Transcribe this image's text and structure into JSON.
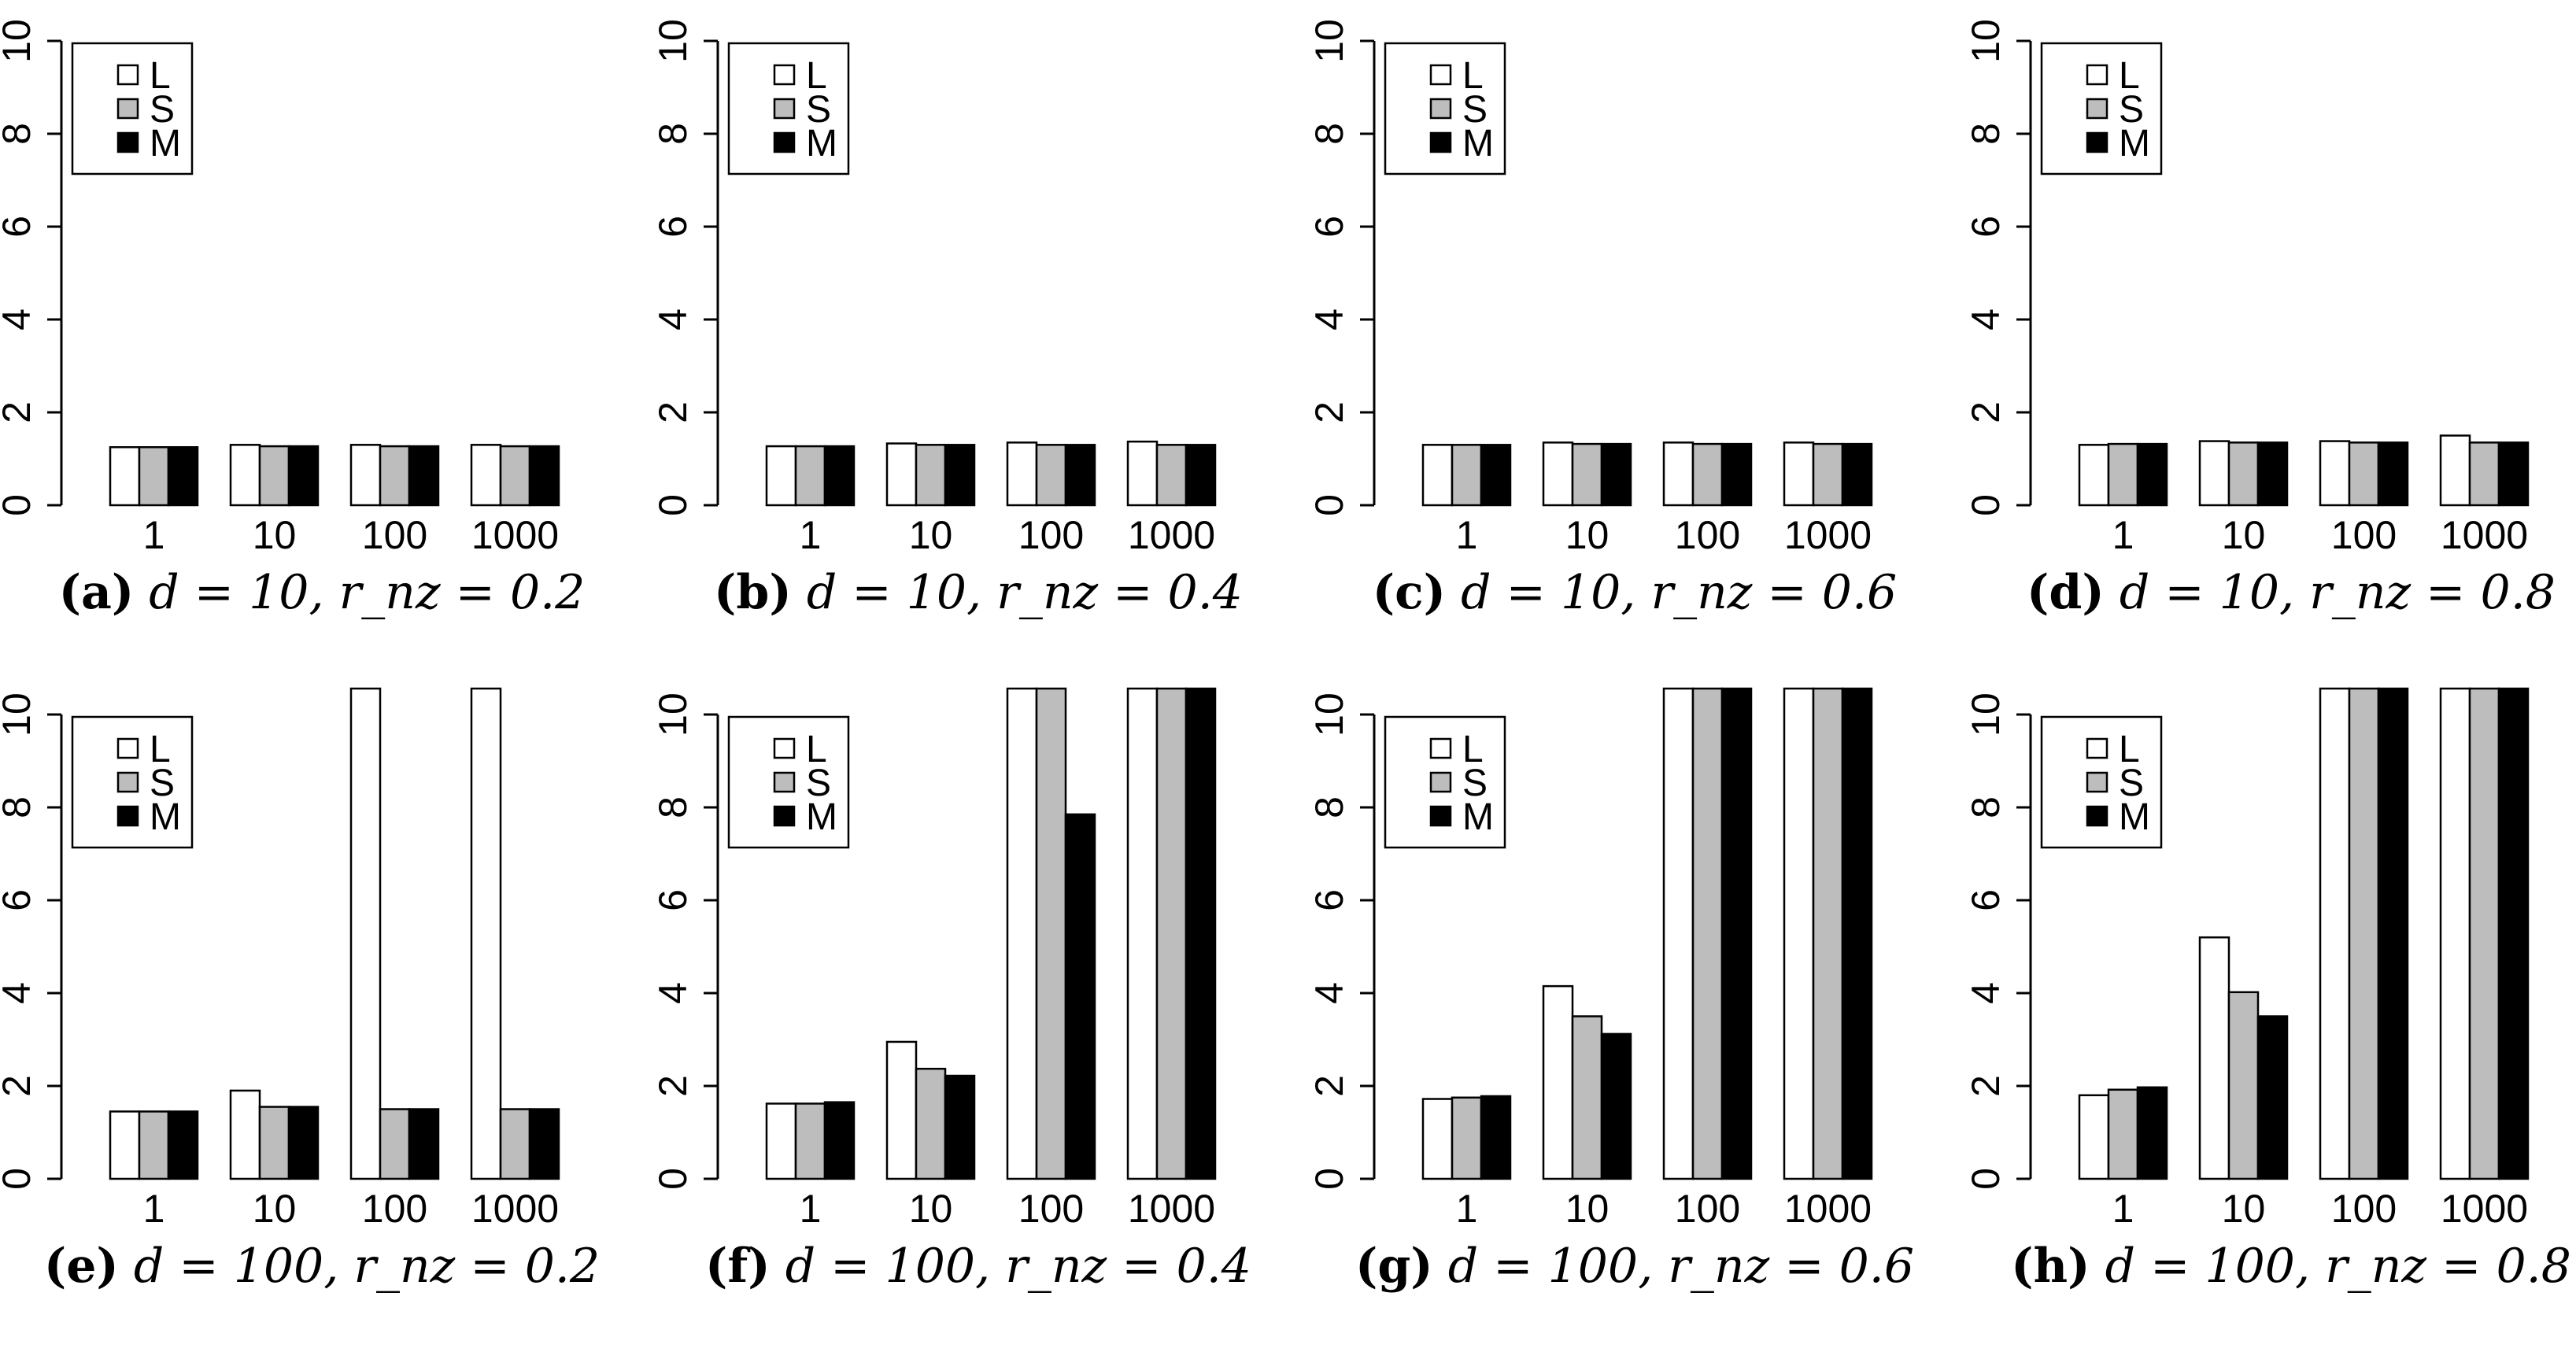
{
  "figure": {
    "legend_entries": [
      "L",
      "S",
      "M"
    ],
    "colors": {
      "L": "#ffffff",
      "S": "#bdbdbd",
      "M": "#000000",
      "stroke": "#000000"
    }
  },
  "chart_data": [
    {
      "type": "bar",
      "panel": "a",
      "caption": {
        "label": "(a)",
        "text": "d = 10, r_nz = 0.2"
      },
      "categories": [
        "1",
        "10",
        "100",
        "1000"
      ],
      "ylim": [
        0,
        10
      ],
      "yticks": [
        "0",
        "2",
        "4",
        "6",
        "8",
        "10"
      ],
      "legend": "top-left",
      "series": [
        {
          "name": "L",
          "values": [
            1.25,
            1.3,
            1.3,
            1.3
          ]
        },
        {
          "name": "S",
          "values": [
            1.25,
            1.27,
            1.27,
            1.27
          ]
        },
        {
          "name": "M",
          "values": [
            1.25,
            1.27,
            1.27,
            1.27
          ]
        }
      ]
    },
    {
      "type": "bar",
      "panel": "b",
      "caption": {
        "label": "(b)",
        "text": "d = 10, r_nz = 0.4"
      },
      "categories": [
        "1",
        "10",
        "100",
        "1000"
      ],
      "ylim": [
        0,
        10
      ],
      "yticks": [
        "0",
        "2",
        "4",
        "6",
        "8",
        "10"
      ],
      "legend": "top-left",
      "series": [
        {
          "name": "L",
          "values": [
            1.27,
            1.33,
            1.35,
            1.37
          ]
        },
        {
          "name": "S",
          "values": [
            1.27,
            1.3,
            1.3,
            1.3
          ]
        },
        {
          "name": "M",
          "values": [
            1.27,
            1.3,
            1.3,
            1.3
          ]
        }
      ]
    },
    {
      "type": "bar",
      "panel": "c",
      "caption": {
        "label": "(c)",
        "text": "d = 10, r_nz = 0.6"
      },
      "categories": [
        "1",
        "10",
        "100",
        "1000"
      ],
      "ylim": [
        0,
        10
      ],
      "yticks": [
        "0",
        "2",
        "4",
        "6",
        "8",
        "10"
      ],
      "legend": "top-left",
      "series": [
        {
          "name": "L",
          "values": [
            1.3,
            1.35,
            1.35,
            1.35
          ]
        },
        {
          "name": "S",
          "values": [
            1.3,
            1.32,
            1.32,
            1.32
          ]
        },
        {
          "name": "M",
          "values": [
            1.3,
            1.32,
            1.32,
            1.32
          ]
        }
      ]
    },
    {
      "type": "bar",
      "panel": "d",
      "caption": {
        "label": "(d)",
        "text": "d = 10, r_nz = 0.8"
      },
      "categories": [
        "1",
        "10",
        "100",
        "1000"
      ],
      "ylim": [
        0,
        10
      ],
      "yticks": [
        "0",
        "2",
        "4",
        "6",
        "8",
        "10"
      ],
      "legend": "top-left",
      "series": [
        {
          "name": "L",
          "values": [
            1.3,
            1.38,
            1.38,
            1.5
          ]
        },
        {
          "name": "S",
          "values": [
            1.32,
            1.35,
            1.35,
            1.35
          ]
        },
        {
          "name": "M",
          "values": [
            1.32,
            1.35,
            1.35,
            1.35
          ]
        }
      ]
    },
    {
      "type": "bar",
      "panel": "e",
      "caption": {
        "label": "(e)",
        "text": "d = 100, r_nz = 0.2"
      },
      "categories": [
        "1",
        "10",
        "100",
        "1000"
      ],
      "ylim": [
        0,
        10
      ],
      "yticks": [
        "0",
        "2",
        "4",
        "6",
        "8",
        "10"
      ],
      "legend": "top-left",
      "series": [
        {
          "name": "L",
          "values": [
            1.45,
            1.9,
            11,
            11
          ]
        },
        {
          "name": "S",
          "values": [
            1.45,
            1.55,
            1.5,
            1.5
          ]
        },
        {
          "name": "M",
          "values": [
            1.45,
            1.55,
            1.5,
            1.5
          ]
        }
      ]
    },
    {
      "type": "bar",
      "panel": "f",
      "caption": {
        "label": "(f)",
        "text": "d = 100, r_nz = 0.4"
      },
      "categories": [
        "1",
        "10",
        "100",
        "1000"
      ],
      "ylim": [
        0,
        10
      ],
      "yticks": [
        "0",
        "2",
        "4",
        "6",
        "8",
        "10"
      ],
      "legend": "top-left",
      "series": [
        {
          "name": "L",
          "values": [
            1.62,
            2.95,
            11,
            11
          ]
        },
        {
          "name": "S",
          "values": [
            1.62,
            2.37,
            11,
            11
          ]
        },
        {
          "name": "M",
          "values": [
            1.65,
            2.22,
            7.85,
            11
          ]
        }
      ]
    },
    {
      "type": "bar",
      "panel": "g",
      "caption": {
        "label": "(g)",
        "text": "d = 100, r_nz = 0.6"
      },
      "categories": [
        "1",
        "10",
        "100",
        "1000"
      ],
      "ylim": [
        0,
        10
      ],
      "yticks": [
        "0",
        "2",
        "4",
        "6",
        "8",
        "10"
      ],
      "legend": "top-left",
      "series": [
        {
          "name": "L",
          "values": [
            1.72,
            4.15,
            11,
            11
          ]
        },
        {
          "name": "S",
          "values": [
            1.75,
            3.5,
            11,
            11
          ]
        },
        {
          "name": "M",
          "values": [
            1.78,
            3.12,
            11,
            11
          ]
        }
      ]
    },
    {
      "type": "bar",
      "panel": "h",
      "caption": {
        "label": "(h)",
        "text": "d = 100, r_nz = 0.8"
      },
      "categories": [
        "1",
        "10",
        "100",
        "1000"
      ],
      "ylim": [
        0,
        10
      ],
      "yticks": [
        "0",
        "2",
        "4",
        "6",
        "8",
        "10"
      ],
      "legend": "top-left",
      "series": [
        {
          "name": "L",
          "values": [
            1.8,
            5.2,
            11,
            11
          ]
        },
        {
          "name": "S",
          "values": [
            1.92,
            4.02,
            11,
            11
          ]
        },
        {
          "name": "M",
          "values": [
            1.97,
            3.5,
            11,
            11
          ]
        }
      ]
    }
  ]
}
